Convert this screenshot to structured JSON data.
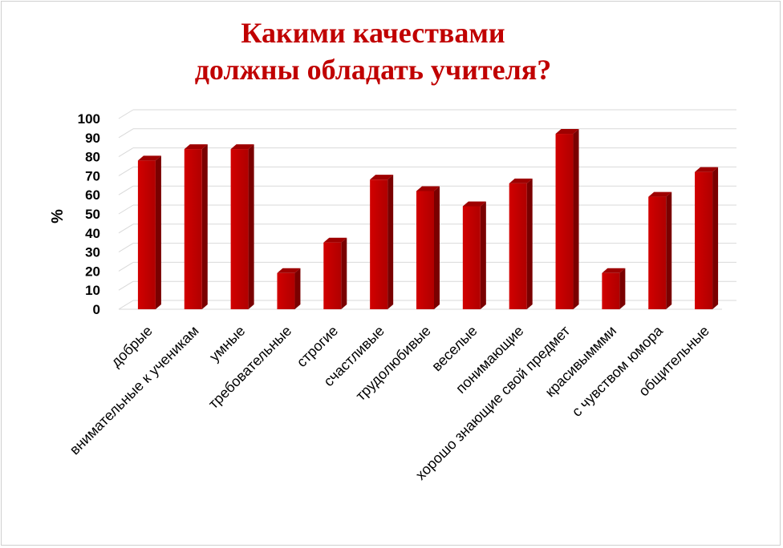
{
  "chart_data": {
    "type": "bar",
    "title": [
      "Какими качествами",
      "должны обладать учителя?"
    ],
    "ylabel": "%",
    "xlabel": "",
    "ylim": [
      0,
      100
    ],
    "yticks": [
      0,
      10,
      20,
      30,
      40,
      50,
      60,
      70,
      80,
      90,
      100
    ],
    "grid": true,
    "legend": "none",
    "style": "3d-column",
    "bar_color": "#c00000",
    "categories": [
      "добрые",
      "внимательные к ученикам",
      "умные",
      "требовательные",
      "строгие",
      "счастливые",
      "трудолюбивые",
      "веселые",
      "понимающие",
      "хорошо знающие свой предмет",
      "красивыммми",
      "с чувством юмора",
      "общительные"
    ],
    "values": [
      78,
      84,
      84,
      19,
      35,
      68,
      62,
      54,
      66,
      92,
      19,
      59,
      72
    ]
  }
}
